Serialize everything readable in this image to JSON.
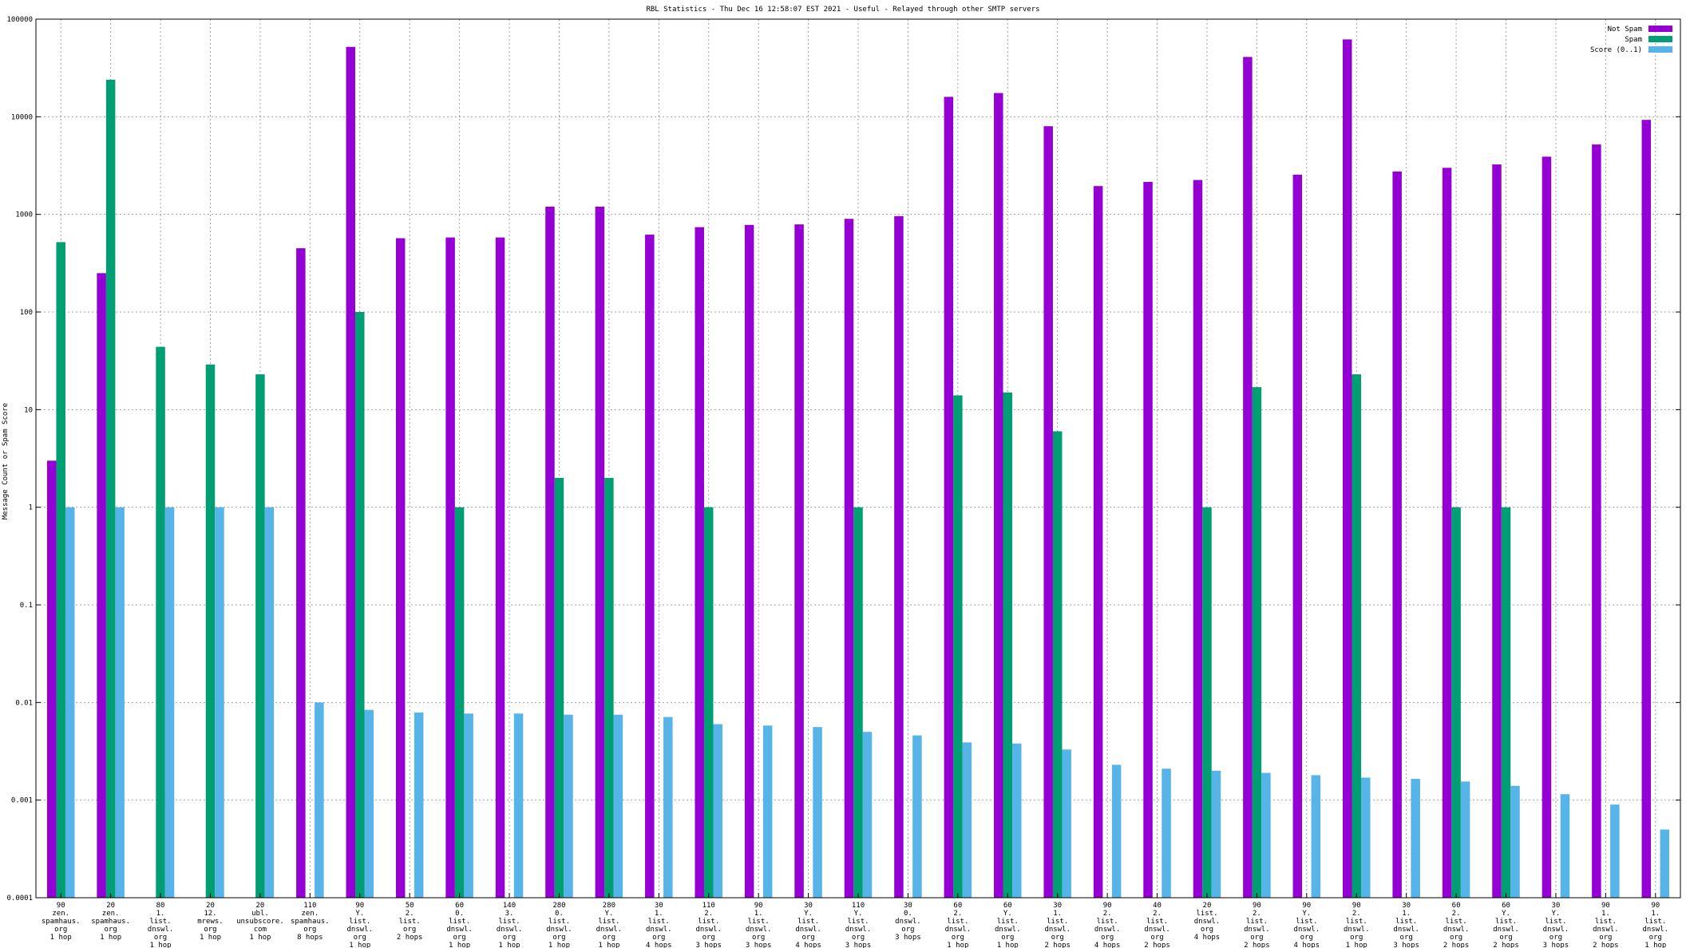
{
  "chart_data": {
    "type": "bar",
    "title": "RBL Statistics - Thu Dec 16 12:58:07 EST 2021 - Useful - Relayed through other SMTP servers",
    "ylabel": "Message Count or Spam Score",
    "xlabel": "",
    "yscale": "log",
    "ylim": [
      0.0001,
      100000
    ],
    "yticks": [
      "0.0001",
      "0.001",
      "0.01",
      "0.1",
      "1",
      "10",
      "100",
      "1000",
      "10000",
      "100000"
    ],
    "grid": true,
    "legend_position": "top-right",
    "categories": [
      [
        "90",
        "zen.",
        "spamhaus.",
        "org",
        "1 hop"
      ],
      [
        "20",
        "zen.",
        "spamhaus.",
        "org",
        "1 hop"
      ],
      [
        "80",
        "1.",
        "list.",
        "dnswl.",
        "org",
        "1 hop"
      ],
      [
        "20",
        "12.",
        "mrews.",
        "org",
        "1 hop"
      ],
      [
        "20",
        "ubl.",
        "unsubscore.",
        "com",
        "1 hop"
      ],
      [
        "110",
        "zen.",
        "spamhaus.",
        "org",
        "8 hops"
      ],
      [
        "90",
        "Y.",
        "list.",
        "dnswl.",
        "org",
        "1 hop"
      ],
      [
        "50",
        "2.",
        "list.",
        "org",
        "2 hops"
      ],
      [
        "60",
        "0.",
        "list.",
        "dnswl.",
        "org",
        "1 hop"
      ],
      [
        "140",
        "3.",
        "list.",
        "dnswl.",
        "org",
        "1 hop"
      ],
      [
        "280",
        "0.",
        "list.",
        "dnswl.",
        "org",
        "1 hop"
      ],
      [
        "280",
        "Y.",
        "list.",
        "dnswl.",
        "org",
        "1 hop"
      ],
      [
        "30",
        "1.",
        "list.",
        "dnswl.",
        "org",
        "4 hops"
      ],
      [
        "110",
        "2.",
        "list.",
        "dnswl.",
        "org",
        "3 hops"
      ],
      [
        "90",
        "1.",
        "list.",
        "dnswl.",
        "org",
        "3 hops"
      ],
      [
        "30",
        "Y.",
        "list.",
        "dnswl.",
        "org",
        "4 hops"
      ],
      [
        "110",
        "Y.",
        "list.",
        "dnswl.",
        "org",
        "3 hops"
      ],
      [
        "30",
        "0.",
        "dnswl.",
        "org",
        "3 hops"
      ],
      [
        "60",
        "2.",
        "list.",
        "dnswl.",
        "org",
        "1 hop"
      ],
      [
        "60",
        "Y.",
        "list.",
        "dnswl.",
        "org",
        "1 hop"
      ],
      [
        "30",
        "1.",
        "list.",
        "dnswl.",
        "org",
        "2 hops"
      ],
      [
        "90",
        "2.",
        "list.",
        "dnswl.",
        "org",
        "4 hops"
      ],
      [
        "40",
        "2.",
        "list.",
        "dnswl.",
        "org",
        "2 hops"
      ],
      [
        "20",
        "list.",
        "dnswl.",
        "org",
        "4 hops"
      ],
      [
        "90",
        "2.",
        "list.",
        "dnswl.",
        "org",
        "2 hops"
      ],
      [
        "90",
        "Y.",
        "list.",
        "dnswl.",
        "org",
        "4 hops"
      ],
      [
        "90",
        "2.",
        "list.",
        "dnswl.",
        "org",
        "1 hop"
      ],
      [
        "30",
        "1.",
        "list.",
        "dnswl.",
        "org",
        "3 hops"
      ],
      [
        "60",
        "2.",
        "list.",
        "dnswl.",
        "org",
        "2 hops"
      ],
      [
        "60",
        "Y.",
        "list.",
        "dnswl.",
        "org",
        "2 hops"
      ],
      [
        "30",
        "Y.",
        "list.",
        "dnswl.",
        "org",
        "3 hops"
      ],
      [
        "90",
        "1.",
        "list.",
        "dnswl.",
        "org",
        "2 hops"
      ],
      [
        "90",
        "1.",
        "list.",
        "dnswl.",
        "org",
        "1 hop"
      ]
    ],
    "series": [
      {
        "name": "Not Spam",
        "color": "#9400d3",
        "values": [
          3,
          250,
          null,
          null,
          null,
          450,
          52000,
          570,
          580,
          580,
          1200,
          1200,
          620,
          740,
          780,
          790,
          900,
          960,
          16000,
          17500,
          8000,
          1950,
          2150,
          2250,
          41000,
          2550,
          62000,
          2750,
          3000,
          3250,
          3900,
          5200,
          9300
        ]
      },
      {
        "name": "Spam",
        "color": "#009e73",
        "values": [
          520,
          24000,
          44,
          29,
          23,
          null,
          100,
          null,
          1,
          null,
          2,
          2,
          null,
          1,
          null,
          null,
          1,
          null,
          14,
          15,
          6,
          null,
          null,
          1,
          17,
          null,
          23,
          null,
          1,
          1,
          null,
          null,
          null
        ]
      },
      {
        "name": "Score (0..1)",
        "color": "#56b4e9",
        "values": [
          1,
          1,
          1,
          1,
          1,
          0.01,
          0.0084,
          0.0079,
          0.0077,
          0.0077,
          0.0075,
          0.0075,
          0.0071,
          0.006,
          0.0058,
          0.0056,
          0.005,
          0.0046,
          0.0039,
          0.0038,
          0.0033,
          0.0023,
          0.0021,
          0.002,
          0.0019,
          0.0018,
          0.0017,
          0.00165,
          0.00155,
          0.0014,
          0.00115,
          0.0009,
          0.0005
        ]
      }
    ]
  }
}
